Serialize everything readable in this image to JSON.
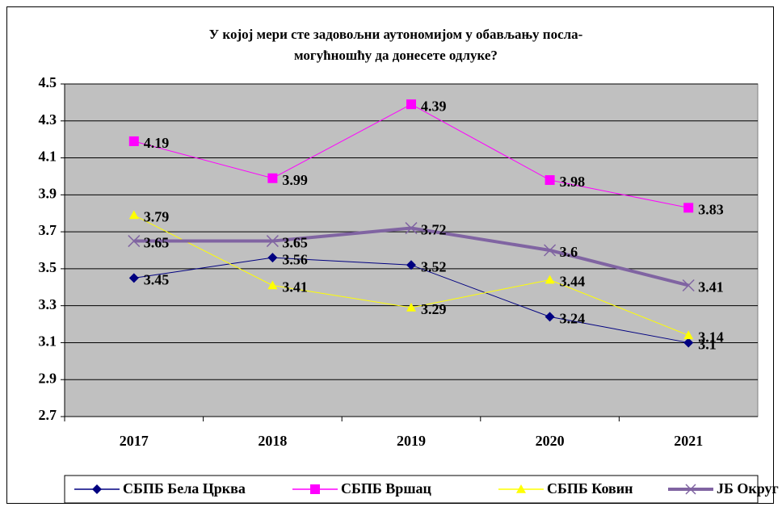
{
  "chart_data": {
    "type": "line",
    "title": "У којој мери сте задовољни аутономијом у обављању посла-могућношћу да донесете одлуке?",
    "categories": [
      "2017",
      "2018",
      "2019",
      "2020",
      "2021"
    ],
    "series": [
      {
        "name": "СБПБ Бела Црква",
        "color": "#000080",
        "marker": "diamond",
        "values": [
          3.45,
          3.56,
          3.52,
          3.24,
          3.1
        ]
      },
      {
        "name": "СБПБ Вршац",
        "color": "#ff00ff",
        "marker": "square",
        "values": [
          4.19,
          3.99,
          4.39,
          3.98,
          3.83
        ]
      },
      {
        "name": "СБПБ Ковин",
        "color": "#ffff00",
        "marker": "triangle",
        "values": [
          3.79,
          3.41,
          3.29,
          3.44,
          3.14
        ]
      },
      {
        "name": "ЈБ Округ",
        "color": "#8064a2",
        "marker": "x",
        "values": [
          3.65,
          3.65,
          3.72,
          3.6,
          3.41
        ]
      }
    ],
    "ylim": [
      2.7,
      4.5
    ],
    "yticks": [
      2.7,
      2.9,
      3.1,
      3.3,
      3.5,
      3.7,
      3.9,
      4.1,
      4.3,
      4.5
    ],
    "grid": true,
    "legend": "bottom"
  }
}
